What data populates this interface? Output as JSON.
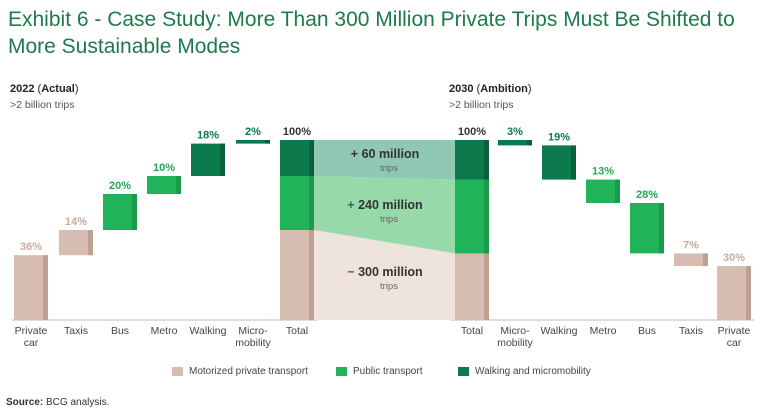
{
  "title": "Exhibit 6 - Case Study: More Than 300 Million Private Trips Must Be Shifted to More Sustainable Modes",
  "left_header": {
    "year": "2022",
    "qualifier": "Actual",
    "subtitle": ">2 billion trips"
  },
  "right_header": {
    "year": "2030",
    "qualifier": "Ambition",
    "subtitle": ">2 billion trips"
  },
  "colors": {
    "motorized": "#d6bcb1",
    "motorized_edge": "#bfa193",
    "public": "#21b359",
    "public_edge": "#1a9a4b",
    "walking": "#0c7a4d",
    "walking_edge": "#09603c",
    "label_motorized": "#c9ab9f",
    "label_public": "#22a853",
    "label_walking": "#0c7a4d",
    "band_top": "#8fc8b3",
    "band_mid": "#97d9a9",
    "band_bottom": "#efe3de"
  },
  "chart_data": {
    "type": "waterfall",
    "unit": "% of trips",
    "panels": [
      {
        "name": "2022 (Actual)",
        "steps": [
          {
            "category": "Private car",
            "value": 36,
            "label": "36%",
            "group": "motorized"
          },
          {
            "category": "Taxis",
            "value": 14,
            "label": "14%",
            "group": "motorized"
          },
          {
            "category": "Bus",
            "value": 20,
            "label": "20%",
            "group": "public"
          },
          {
            "category": "Metro",
            "value": 10,
            "label": "10%",
            "group": "public"
          },
          {
            "category": "Walking",
            "value": 18,
            "label": "18%",
            "group": "walking"
          },
          {
            "category": "Micromobility",
            "value": 2,
            "label": "2%",
            "group": "walking"
          },
          {
            "category": "Total",
            "value": 100,
            "label": "100%",
            "group": "total",
            "composition": {
              "motorized": 50,
              "public": 30,
              "walking": 20
            }
          }
        ]
      },
      {
        "name": "2030 (Ambition)",
        "steps": [
          {
            "category": "Total",
            "value": 100,
            "label": "100%",
            "group": "total",
            "composition": {
              "motorized": 37,
              "public": 41,
              "walking": 22
            }
          },
          {
            "category": "Micromobility",
            "value": 3,
            "label": "3%",
            "group": "walking"
          },
          {
            "category": "Walking",
            "value": 19,
            "label": "19%",
            "group": "walking"
          },
          {
            "category": "Metro",
            "value": 13,
            "label": "13%",
            "group": "public"
          },
          {
            "category": "Bus",
            "value": 28,
            "label": "28%",
            "group": "public"
          },
          {
            "category": "Taxis",
            "value": 7,
            "label": "7%",
            "group": "motorized"
          },
          {
            "category": "Private car",
            "value": 30,
            "label": "30%",
            "group": "motorized"
          }
        ]
      }
    ],
    "shifts": [
      {
        "sign": "+",
        "amount": "60 million",
        "unit": "trips",
        "group": "walking"
      },
      {
        "sign": "+",
        "amount": "240 million",
        "unit": "trips",
        "group": "public"
      },
      {
        "sign": "−",
        "amount": "300 million",
        "unit": "trips",
        "group": "motorized"
      }
    ],
    "legend": [
      {
        "label": "Motorized private transport",
        "group": "motorized"
      },
      {
        "label": "Public transport",
        "group": "public"
      },
      {
        "label": "Walking and micromobility",
        "group": "walking"
      }
    ]
  },
  "source": {
    "label": "Source:",
    "text": "BCG analysis."
  }
}
